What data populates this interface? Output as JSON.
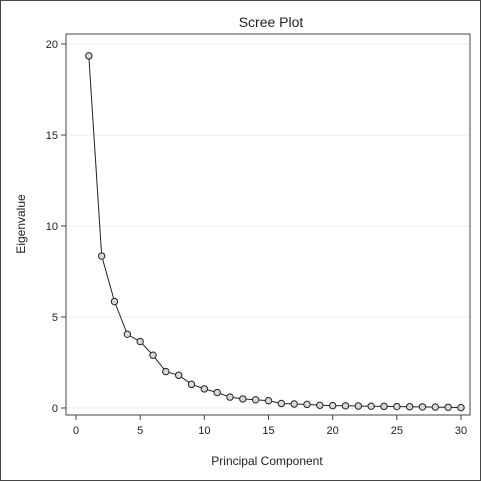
{
  "chart_data": {
    "type": "line",
    "title": "Scree Plot",
    "xlabel": "Principal Component",
    "ylabel": "Eigenvalue",
    "xlim": [
      0,
      30
    ],
    "ylim": [
      0,
      20
    ],
    "x_ticks": [
      0,
      5,
      10,
      15,
      20,
      25,
      30
    ],
    "y_ticks": [
      0,
      5,
      10,
      15,
      20
    ],
    "grid": "horizontal",
    "marker": "open-circle",
    "series": [
      {
        "x": [
          1,
          2,
          3,
          4,
          5,
          6,
          7,
          8,
          9,
          10,
          11,
          12,
          13,
          14,
          15,
          16,
          17,
          18,
          19,
          20,
          21,
          22,
          23,
          24,
          25,
          26,
          27,
          28,
          29,
          30
        ],
        "values": [
          19.35,
          8.35,
          5.85,
          4.05,
          3.65,
          2.9,
          2.0,
          1.8,
          1.3,
          1.05,
          0.85,
          0.6,
          0.5,
          0.45,
          0.4,
          0.25,
          0.22,
          0.2,
          0.15,
          0.13,
          0.12,
          0.11,
          0.1,
          0.09,
          0.08,
          0.07,
          0.06,
          0.05,
          0.04,
          0.02
        ]
      }
    ],
    "colors": {
      "line": "#222222",
      "marker_fill": "#d9d9d9",
      "grid": "#ececec",
      "frame": "#444444"
    }
  }
}
